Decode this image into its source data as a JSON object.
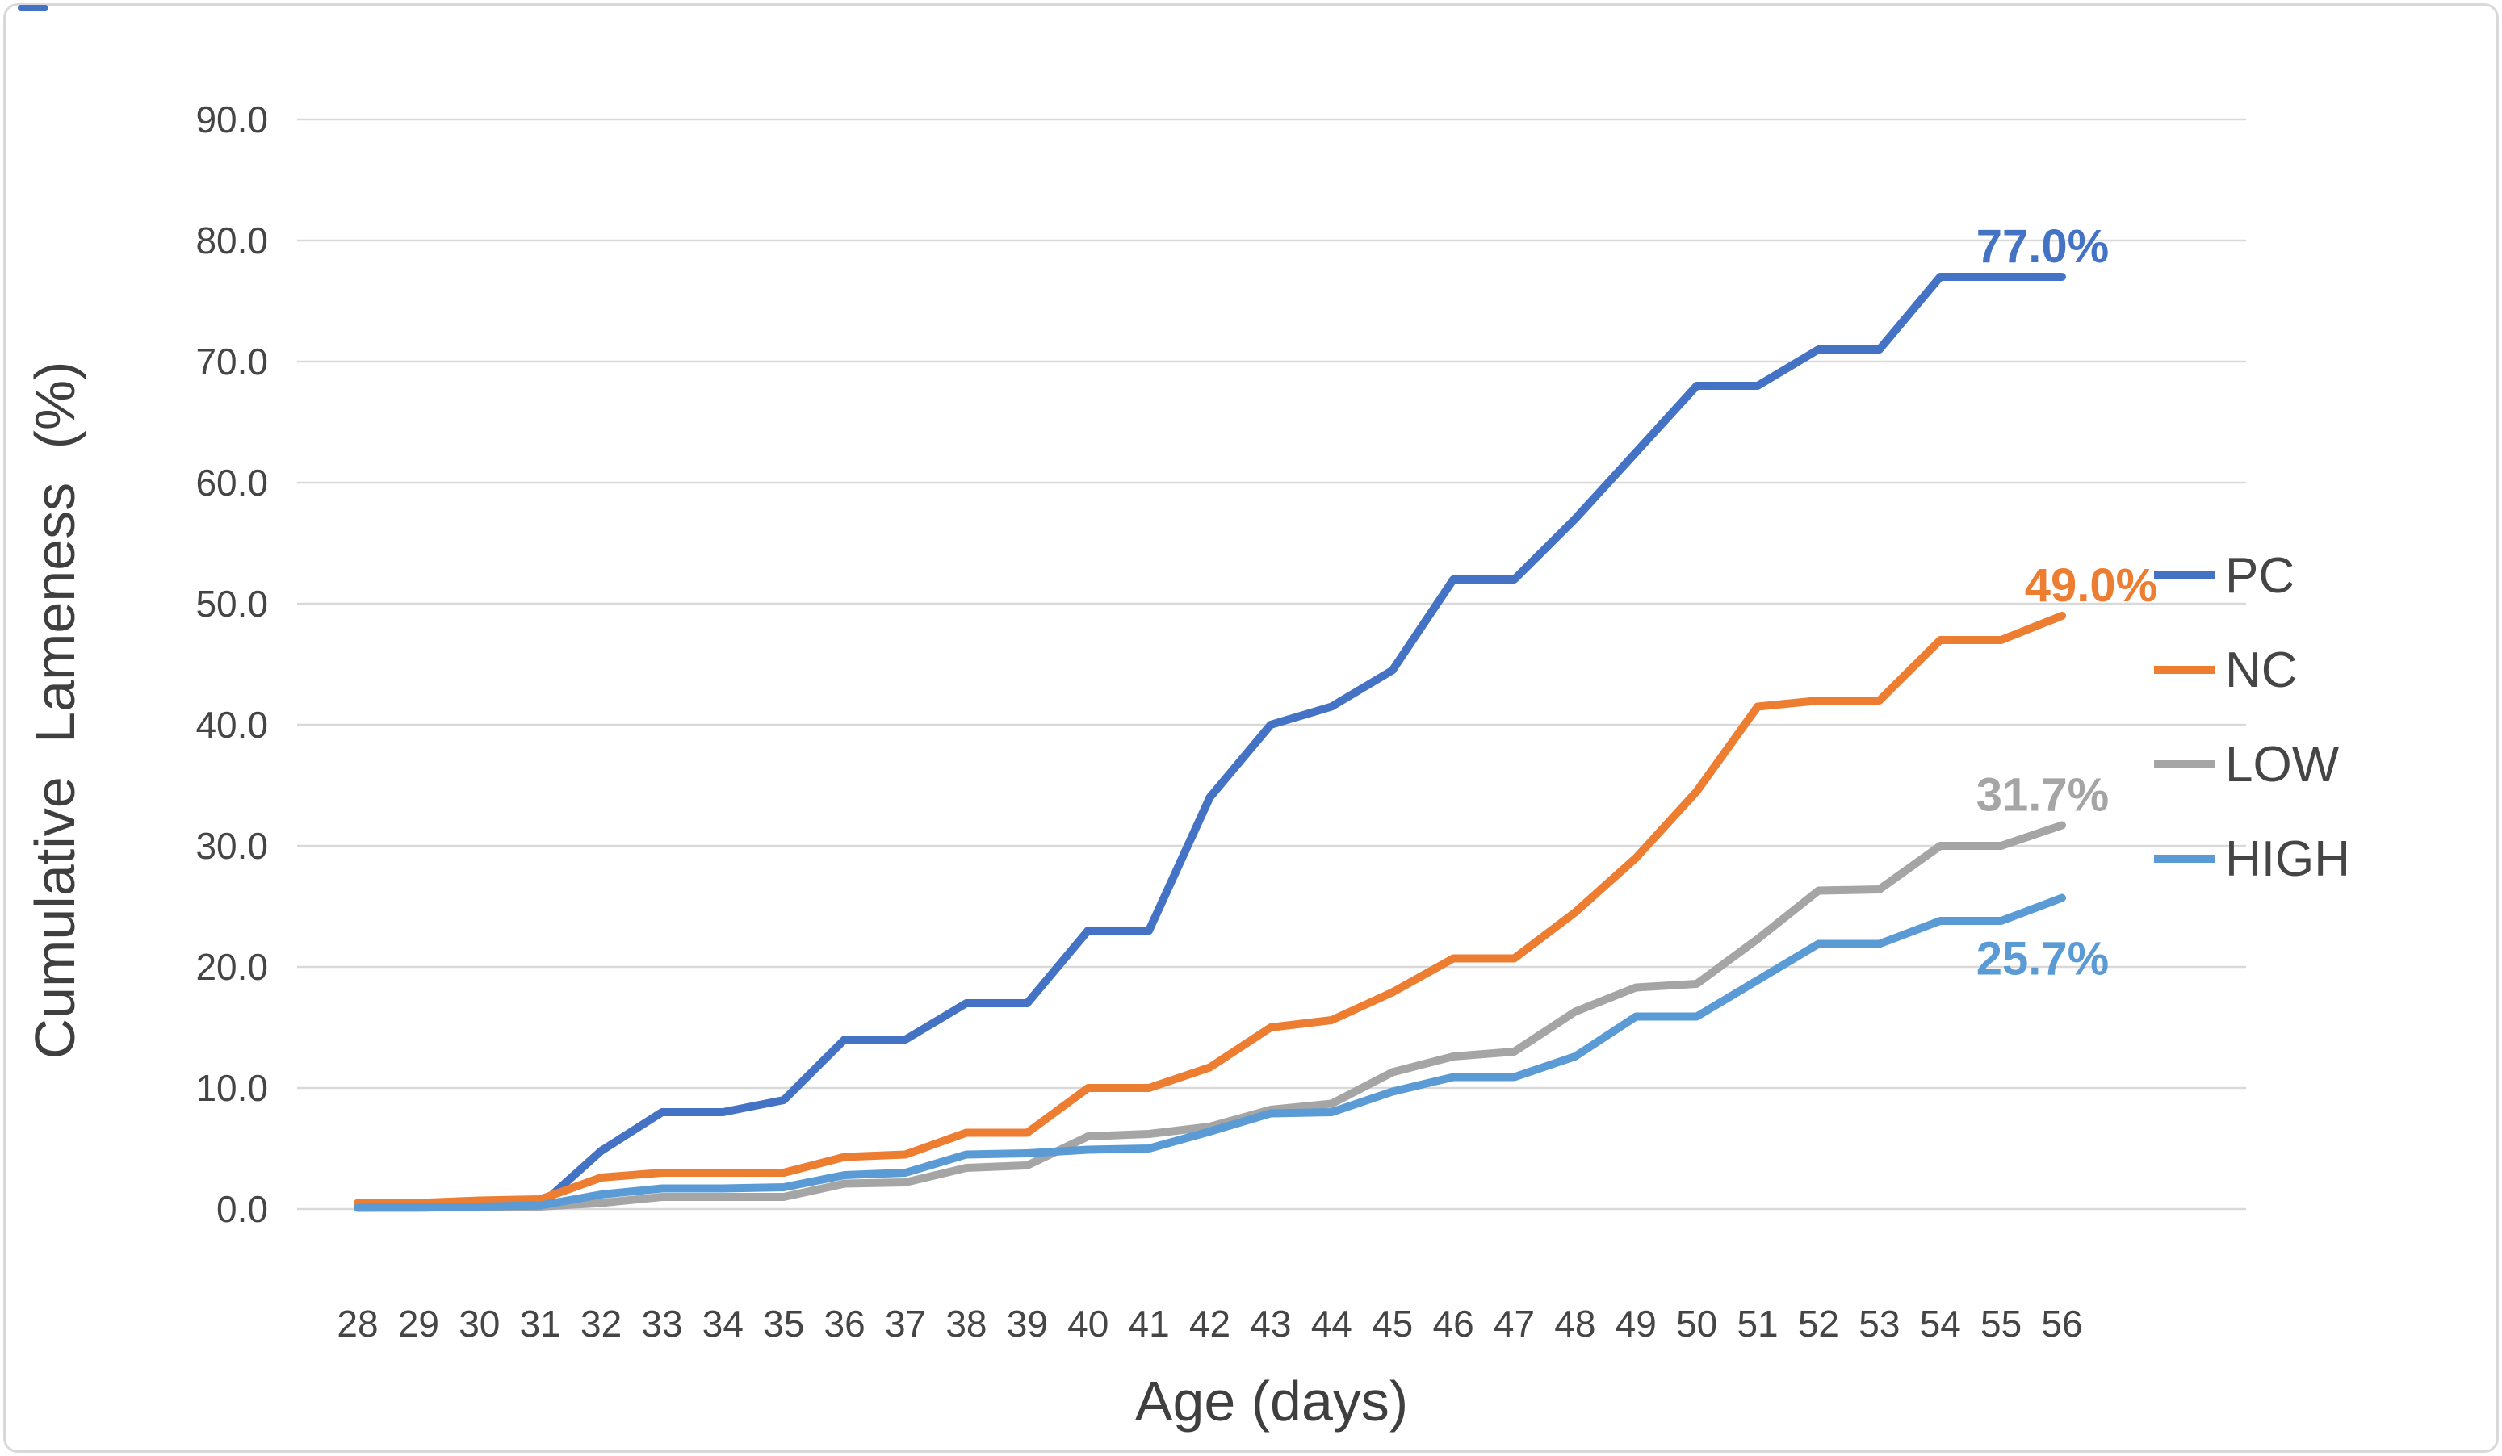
{
  "figure": {
    "background": "#ffffff",
    "border_color": "#d9d9d9",
    "corner_mark_color": "#4472C4"
  },
  "chart_data": {
    "type": "line",
    "title": "",
    "xlabel": "Age (days)",
    "ylabel": "Cumulative Lameness (%)",
    "x": [
      28,
      29,
      30,
      31,
      32,
      33,
      34,
      35,
      36,
      37,
      38,
      39,
      40,
      41,
      42,
      43,
      44,
      45,
      46,
      47,
      48,
      49,
      50,
      51,
      52,
      53,
      54,
      55,
      56
    ],
    "ylim": [
      0,
      90
    ],
    "yticks": [
      0,
      10,
      20,
      30,
      40,
      50,
      60,
      70,
      80,
      90
    ],
    "ytick_labels": [
      "0.0",
      "10.0",
      "20.0",
      "30.0",
      "40.0",
      "50.0",
      "60.0",
      "70.0",
      "80.0",
      "90.0"
    ],
    "grid": "horizontal",
    "gridline_color": "#D9D9D9",
    "text_color": "#454545",
    "legend_position": "right",
    "series": [
      {
        "name": "PC",
        "color": "#4472C4",
        "end_label": "77.0%",
        "end_label_side": "above",
        "values": [
          0.3,
          0.3,
          0.3,
          0.3,
          4.8,
          8.0,
          8.0,
          9.0,
          14.0,
          14.0,
          17.0,
          17.0,
          23.0,
          23.0,
          34.0,
          40.0,
          41.5,
          44.5,
          52.0,
          52.0,
          57.0,
          62.5,
          68.0,
          68.0,
          71.0,
          71.0,
          77.0,
          77.0,
          77.0
        ]
      },
      {
        "name": "NC",
        "color": "#ED7D31",
        "end_label": "49.0%",
        "end_label_side": "above",
        "values": [
          0.5,
          0.5,
          0.7,
          0.8,
          2.6,
          3.0,
          3.0,
          3.0,
          4.3,
          4.5,
          6.3,
          6.3,
          10.0,
          10.0,
          11.7,
          15.0,
          15.6,
          17.9,
          20.7,
          20.7,
          24.5,
          29.0,
          34.5,
          41.5,
          42.0,
          42.0,
          47.0,
          47.0,
          49.0
        ]
      },
      {
        "name": "LOW",
        "color": "#A5A5A5",
        "end_label": "31.7%",
        "end_label_side": "above",
        "values": [
          0.1,
          0.1,
          0.2,
          0.2,
          0.5,
          1.0,
          1.0,
          1.0,
          2.1,
          2.2,
          3.4,
          3.6,
          6.0,
          6.2,
          6.8,
          8.2,
          8.7,
          11.3,
          12.6,
          13.0,
          16.3,
          18.3,
          18.6,
          22.3,
          26.3,
          26.4,
          30.0,
          30.0,
          31.7
        ]
      },
      {
        "name": "HIGH",
        "color": "#5B9BD5",
        "end_label": "25.7%",
        "end_label_side": "below",
        "values": [
          0.1,
          0.2,
          0.2,
          0.3,
          1.2,
          1.7,
          1.7,
          1.8,
          2.8,
          3.0,
          4.5,
          4.6,
          4.9,
          5.0,
          6.4,
          7.9,
          8.0,
          9.7,
          10.9,
          10.9,
          12.6,
          15.9,
          15.9,
          18.9,
          21.9,
          21.9,
          23.8,
          23.8,
          25.7
        ]
      }
    ]
  }
}
